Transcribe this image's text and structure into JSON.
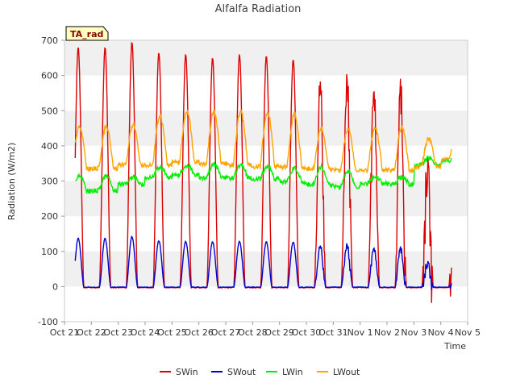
{
  "chart_data": {
    "type": "line",
    "title": "Alfalfa Radiation",
    "xlabel": "Time",
    "ylabel": "Radiation (W/m2)",
    "annotation": "TA_rad",
    "ylim": [
      -100,
      700
    ],
    "yticks": [
      -100,
      0,
      100,
      200,
      300,
      400,
      500,
      600,
      700
    ],
    "xlim": [
      0,
      15
    ],
    "xticks": [
      0,
      1,
      2,
      3,
      4,
      5,
      6,
      7,
      8,
      9,
      10,
      11,
      12,
      13,
      14,
      15
    ],
    "xtick_labels": [
      "Oct 21",
      "Oct 22",
      "Oct 23",
      "Oct 24",
      "Oct 25",
      "Oct 26",
      "Oct 27",
      "Oct 28",
      "Oct 29",
      "Oct 30",
      "Oct 31",
      "Nov 1",
      "Nov 2",
      "Nov 3",
      "Nov 4",
      "Nov 5"
    ],
    "grid": "horizontal bands",
    "legend_position": "bottom",
    "days": [
      "Oct 22",
      "Oct 23",
      "Oct 24",
      "Oct 25",
      "Oct 26",
      "Oct 27",
      "Oct 28",
      "Oct 29",
      "Oct 30",
      "Oct 31",
      "Nov 1",
      "Nov 2",
      "Nov 3",
      "Nov 4"
    ],
    "series": [
      {
        "name": "SWin",
        "color": "#dd0000",
        "daily_peak": [
          680,
          695,
          665,
          660,
          650,
          660,
          655,
          645,
          665,
          645,
          615,
          615,
          435,
          280
        ],
        "night": -3
      },
      {
        "name": "SWout",
        "color": "#0000cc",
        "daily_peak": [
          137,
          142,
          130,
          128,
          127,
          128,
          127,
          126,
          132,
          130,
          120,
          118,
          85,
          50
        ],
        "night": -2
      },
      {
        "name": "LWin",
        "color": "#00ee00",
        "daily_peak": [
          315,
          312,
          340,
          345,
          348,
          345,
          342,
          335,
          340,
          330,
          312,
          310,
          365,
          368
        ],
        "night": [
          272,
          290,
          310,
          318,
          310,
          308,
          305,
          298,
          290,
          282,
          292,
          290,
          345,
          355
        ]
      },
      {
        "name": "LWout",
        "color": "#ffa500",
        "daily_peak": [
          455,
          460,
          485,
          500,
          498,
          498,
          495,
          490,
          450,
          450,
          452,
          452,
          420,
          408
        ],
        "night": [
          335,
          345,
          345,
          355,
          350,
          345,
          340,
          340,
          335,
          330,
          330,
          330,
          340,
          360
        ]
      }
    ]
  }
}
